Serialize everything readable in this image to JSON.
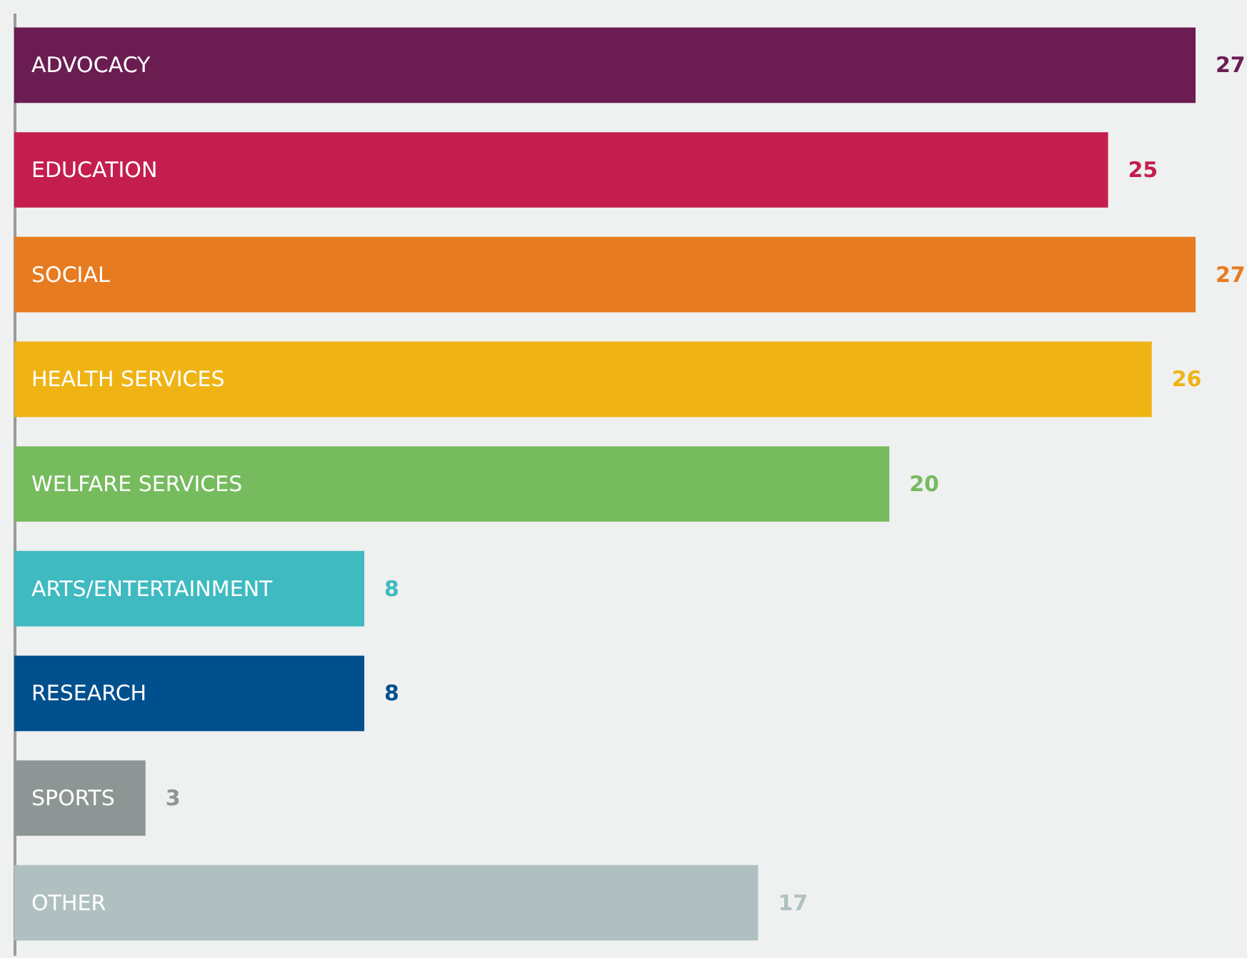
{
  "chart_data": {
    "type": "bar",
    "orientation": "horizontal",
    "data_labels": true,
    "categories": [
      "ADVOCACY",
      "EDUCATION",
      "SOCIAL",
      "HEALTH SERVICES",
      "WELFARE SERVICES",
      "ARTS/ENTERTAINMENT",
      "RESEARCH",
      "SPORTS",
      "OTHER"
    ],
    "values": [
      27,
      25,
      27,
      26,
      20,
      8,
      8,
      3,
      17
    ],
    "colors": [
      "#6b1d52",
      "#c41e4e",
      "#e77b20",
      "#efb314",
      "#76bb5e",
      "#3fbac1",
      "#00508e",
      "#8e9595",
      "#b0c0c0"
    ]
  }
}
